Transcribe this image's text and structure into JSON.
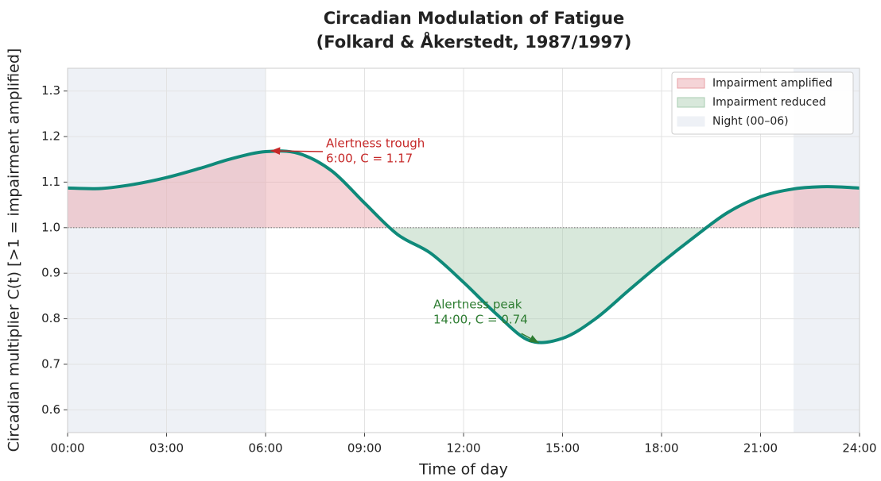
{
  "chart_data": {
    "type": "line",
    "title": [
      "Circadian Modulation of Fatigue",
      "(Folkard & Åkerstedt, 1987/1997)"
    ],
    "xlabel": "Time of day",
    "ylabel": "Circadian multiplier C(t)  [>1 = impairment amplified]",
    "x": [
      0,
      1,
      2,
      3,
      4,
      5,
      6,
      7,
      8,
      9,
      10,
      11,
      12,
      13,
      14,
      15,
      16,
      17,
      18,
      19,
      20,
      21,
      22,
      23,
      24
    ],
    "series": [
      {
        "name": "C(t)",
        "color": "#0f8a7a",
        "values": [
          1.087,
          1.086,
          1.095,
          1.11,
          1.13,
          1.152,
          1.167,
          1.163,
          1.125,
          1.054,
          0.985,
          0.944,
          0.88,
          0.81,
          0.752,
          0.757,
          0.8,
          0.862,
          0.923,
          0.98,
          1.033,
          1.068,
          1.085,
          1.09,
          1.087
        ]
      }
    ],
    "reference": 1,
    "fills": [
      {
        "name": "Impairment amplified",
        "color": "#e8a0a6",
        "side": "above"
      },
      {
        "name": "Impairment reduced",
        "color": "#a8cdb0",
        "side": "below"
      }
    ],
    "bands": {
      "name": "Night (00–06)",
      "color": "#eef1f6",
      "ranges": [
        [
          0,
          6
        ],
        [
          22,
          24
        ]
      ]
    },
    "annotations": [
      {
        "text": [
          "Alertness trough",
          "6:00, C = 1.17"
        ],
        "x": 6.2,
        "y": 1.167,
        "color": "#c62828"
      },
      {
        "text": [
          "Alertness peak",
          "14:00, C = 0.74"
        ],
        "x": 14.33,
        "y": 0.745,
        "color": "#2e7d32"
      }
    ],
    "xlim": [
      0,
      24
    ],
    "xticks": [
      {
        "value": 0,
        "label": "00:00"
      },
      {
        "value": 3,
        "label": "03:00"
      },
      {
        "value": 6,
        "label": "06:00"
      },
      {
        "value": 9,
        "label": "09:00"
      },
      {
        "value": 12,
        "label": "12:00"
      },
      {
        "value": 15,
        "label": "15:00"
      },
      {
        "value": 18,
        "label": "18:00"
      },
      {
        "value": 21,
        "label": "21:00"
      },
      {
        "value": 24,
        "label": "24:00"
      }
    ],
    "ylim": [
      0.55,
      1.35
    ],
    "yticks": [
      0.6,
      0.7,
      0.8,
      0.9,
      {
        "value": 1,
        "label": "1.0"
      },
      1.1,
      1.2,
      1.3
    ],
    "grid": true,
    "legend": "upper right"
  }
}
